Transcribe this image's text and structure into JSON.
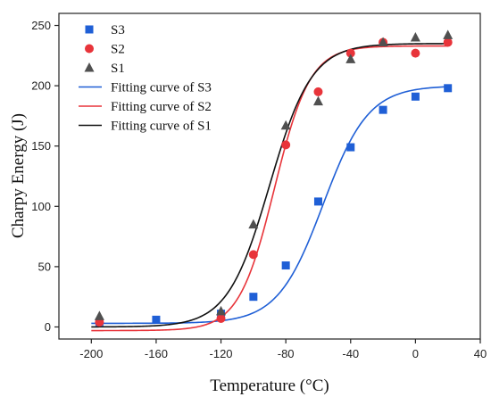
{
  "chart_data": {
    "type": "scatter",
    "xlabel": "Temperature (°C)",
    "ylabel": "Charpy Energy (J)",
    "xlim": [
      -220,
      40
    ],
    "ylim": [
      -10,
      260
    ],
    "xticks": [
      -200,
      -160,
      -120,
      -80,
      -40,
      0,
      40
    ],
    "yticks": [
      0,
      50,
      100,
      150,
      200,
      250
    ],
    "grid": false,
    "legend_position": "top-left",
    "series": [
      {
        "name": "S3",
        "marker": "square",
        "color": "#1f5fd6",
        "x": [
          -195,
          -160,
          -120,
          -100,
          -80,
          -60,
          -40,
          -20,
          0,
          20
        ],
        "y": [
          4,
          6,
          11,
          25,
          51,
          104,
          149,
          180,
          191,
          198
        ]
      },
      {
        "name": "S2",
        "marker": "circle",
        "color": "#e8343a",
        "x": [
          -195,
          -120,
          -100,
          -80,
          -60,
          -40,
          -20,
          0,
          20
        ],
        "y": [
          4,
          7,
          60,
          151,
          195,
          227,
          236,
          227,
          236
        ]
      },
      {
        "name": "S1",
        "marker": "triangle",
        "color": "#505050",
        "x": [
          -195,
          -120,
          -100,
          -80,
          -60,
          -40,
          -20,
          0,
          20
        ],
        "y": [
          9,
          13,
          85,
          167,
          187,
          222,
          236,
          240,
          242
        ]
      }
    ],
    "fits": [
      {
        "name": "Fitting curve of S3",
        "color": "#1f5fd6",
        "A1": 3,
        "A2": 200,
        "x0": -57,
        "dx": 14
      },
      {
        "name": "Fitting curve of S2",
        "color": "#e8343a",
        "A1": -3,
        "A2": 233,
        "x0": -87,
        "dx": 11
      },
      {
        "name": "Fitting curve of S1",
        "color": "#111111",
        "A1": 0,
        "A2": 235,
        "x0": -90,
        "dx": 13
      }
    ]
  }
}
